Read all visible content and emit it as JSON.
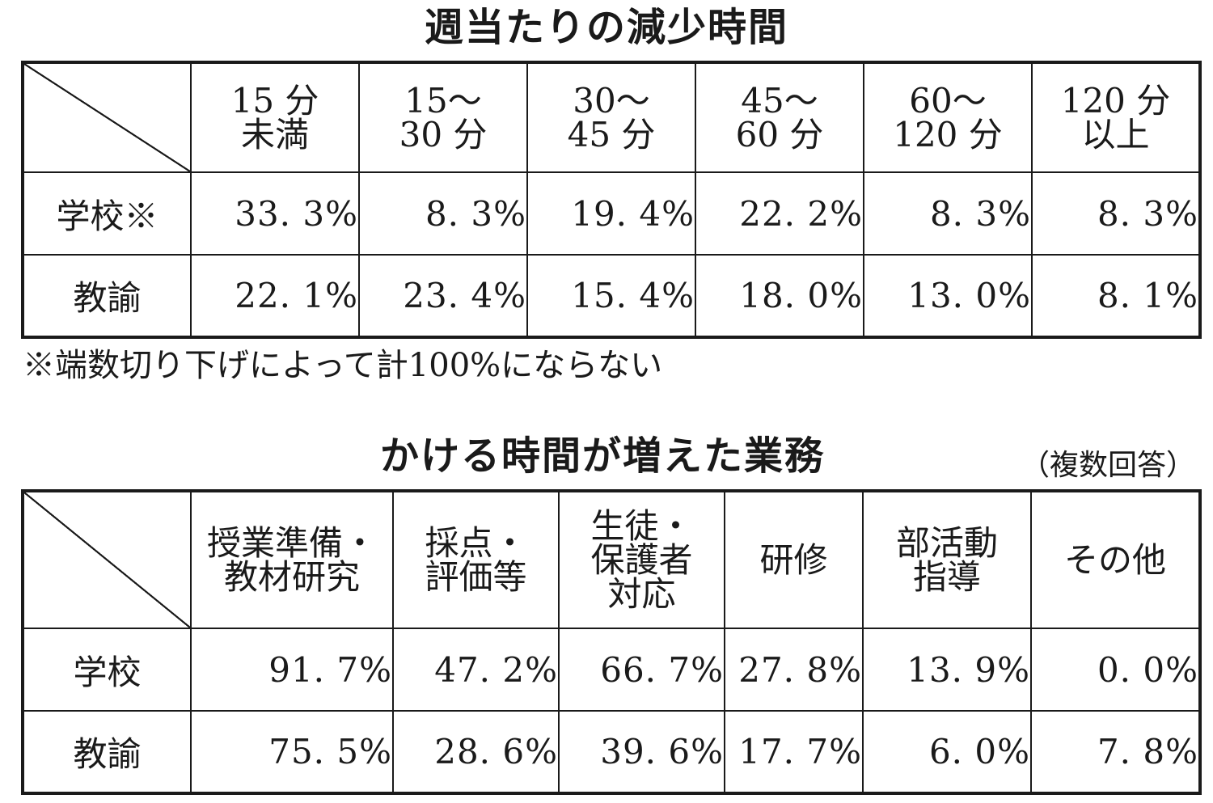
{
  "section1": {
    "title": "週当たりの減少時間",
    "columns": [
      "15 分\n未満",
      "15～\n30 分",
      "30～\n45 分",
      "45～\n60 分",
      "60～\n120 分",
      "120 分\n以上"
    ],
    "rows": [
      {
        "label": "学校※",
        "values": [
          "33. 3%",
          "8. 3%",
          "19. 4%",
          "22. 2%",
          "8. 3%",
          "8. 3%"
        ]
      },
      {
        "label": "教諭",
        "values": [
          "22. 1%",
          "23. 4%",
          "15. 4%",
          "18. 0%",
          "13. 0%",
          "8. 1%"
        ]
      }
    ],
    "note": "※端数切り下げによって計100%にならない"
  },
  "section2": {
    "title": "かける時間が増えた業務",
    "subtitle": "（複数回答）",
    "columns": [
      "授業準備・\n教材研究",
      "採点・\n評価等",
      "生徒・\n保護者\n対応",
      "研修",
      "部活動\n指導",
      "その他"
    ],
    "rows": [
      {
        "label": "学校",
        "values": [
          "91. 7%",
          "47. 2%",
          "66. 7%",
          "27. 8%",
          "13. 9%",
          "0. 0%"
        ]
      },
      {
        "label": "教諭",
        "values": [
          "75. 5%",
          "28. 6%",
          "39. 6%",
          "17. 7%",
          "6. 0%",
          "7. 8%"
        ]
      }
    ]
  }
}
